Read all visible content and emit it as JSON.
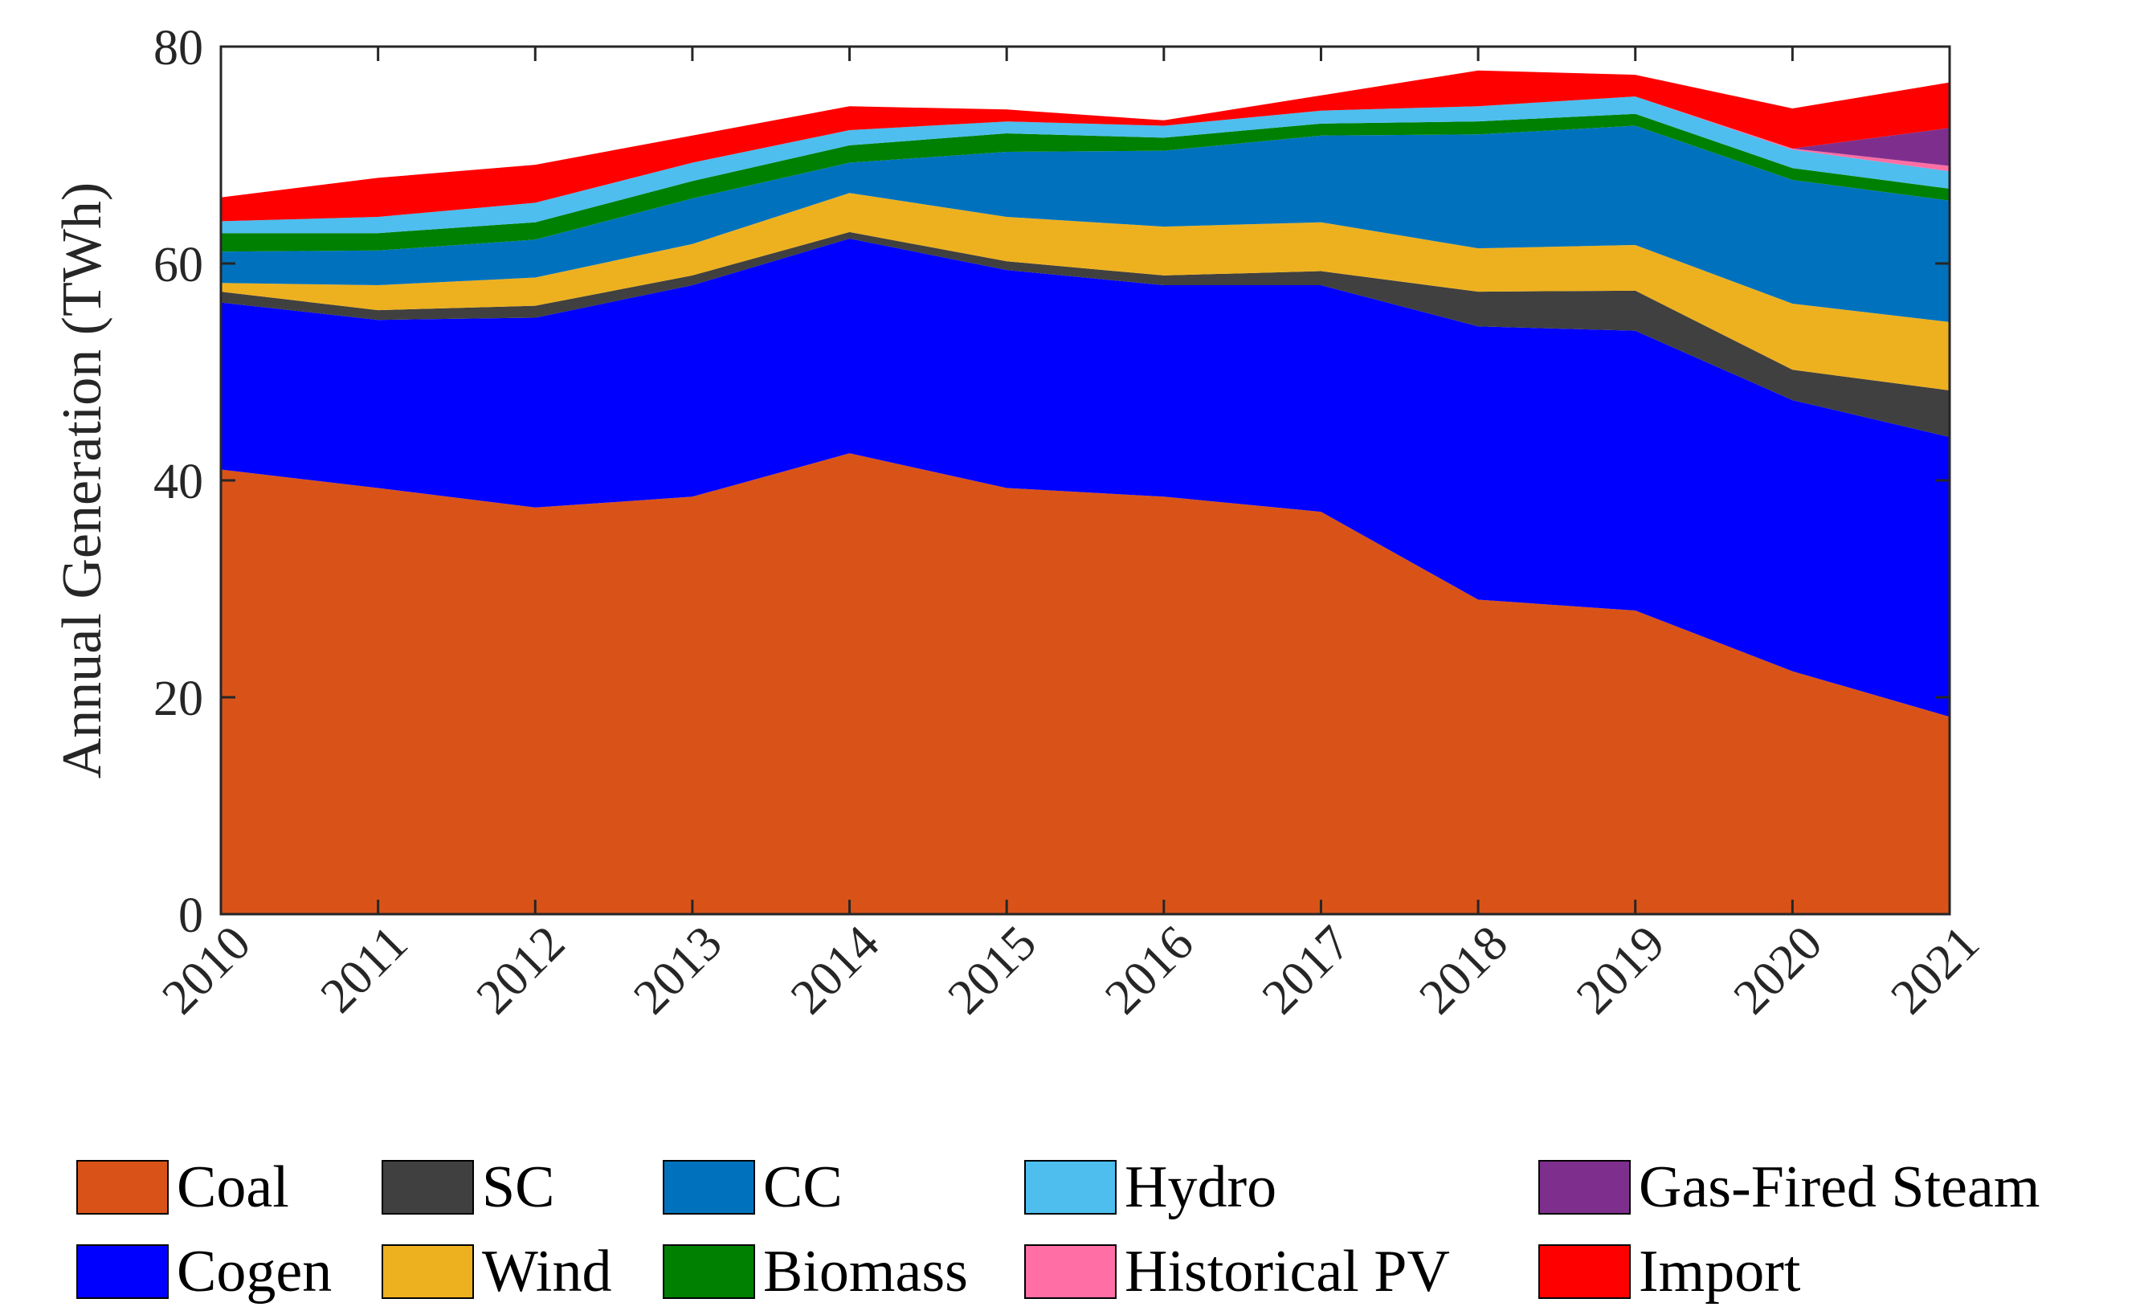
{
  "chart_data": {
    "type": "area",
    "stacked": true,
    "title": "",
    "xlabel": "",
    "ylabel": "Annual Generation (TWh)",
    "ylim": [
      0,
      80
    ],
    "yticks": [
      0,
      20,
      40,
      60,
      80
    ],
    "x": [
      2010,
      2011,
      2012,
      2013,
      2014,
      2015,
      2016,
      2017,
      2018,
      2019,
      2020,
      2021
    ],
    "series": [
      {
        "name": "Coal",
        "color": "#D95319",
        "values": [
          41.0,
          39.3,
          37.5,
          38.5,
          42.5,
          39.3,
          38.5,
          37.1,
          29.0,
          28.0,
          22.4,
          18.2
        ]
      },
      {
        "name": "Cogen",
        "color": "#0000FF",
        "values": [
          15.4,
          15.5,
          17.5,
          19.5,
          19.8,
          20.1,
          19.5,
          20.9,
          25.2,
          25.8,
          25.0,
          25.8
        ]
      },
      {
        "name": "SC",
        "color": "#404040",
        "values": [
          1.0,
          0.9,
          1.1,
          0.9,
          0.6,
          0.8,
          0.9,
          1.3,
          3.2,
          3.7,
          2.8,
          4.3
        ]
      },
      {
        "name": "Wind",
        "color": "#EDB120",
        "values": [
          0.8,
          2.3,
          2.6,
          2.9,
          3.6,
          4.1,
          4.5,
          4.5,
          4.0,
          4.2,
          6.1,
          6.3
        ]
      },
      {
        "name": "CC",
        "color": "#0072BD",
        "values": [
          2.9,
          3.2,
          3.5,
          4.2,
          2.8,
          6.0,
          7.0,
          8.0,
          10.5,
          11.0,
          11.4,
          11.2
        ]
      },
      {
        "name": "Biomass",
        "color": "#008000",
        "values": [
          1.7,
          1.6,
          1.6,
          1.6,
          1.6,
          1.7,
          1.2,
          1.1,
          1.2,
          1.1,
          1.1,
          1.1
        ]
      },
      {
        "name": "Hydro",
        "color": "#4DBEEE",
        "values": [
          1.1,
          1.5,
          1.8,
          1.7,
          1.4,
          1.1,
          1.1,
          1.2,
          1.4,
          1.6,
          1.7,
          1.6
        ]
      },
      {
        "name": "Historical PV",
        "color": "#FF6EA4",
        "values": [
          0,
          0,
          0,
          0,
          0,
          0,
          0,
          0,
          0,
          0,
          0.1,
          0.5
        ]
      },
      {
        "name": "Gas-Fired Steam",
        "color": "#7E2F8E",
        "values": [
          0,
          0,
          0,
          0,
          0,
          0,
          0,
          0,
          0,
          0,
          0.0,
          3.5
        ]
      },
      {
        "name": "Import",
        "color": "#FF0000",
        "values": [
          2.2,
          3.6,
          3.5,
          2.5,
          2.2,
          1.1,
          0.5,
          1.4,
          3.3,
          2.0,
          3.7,
          4.2
        ]
      }
    ],
    "legend_order": [
      "Coal",
      "SC",
      "CC",
      "Hydro",
      "Gas-Fired Steam",
      "Cogen",
      "Wind",
      "Biomass",
      "Historical PV",
      "Import"
    ],
    "legend_position": "bottom",
    "grid": false
  }
}
